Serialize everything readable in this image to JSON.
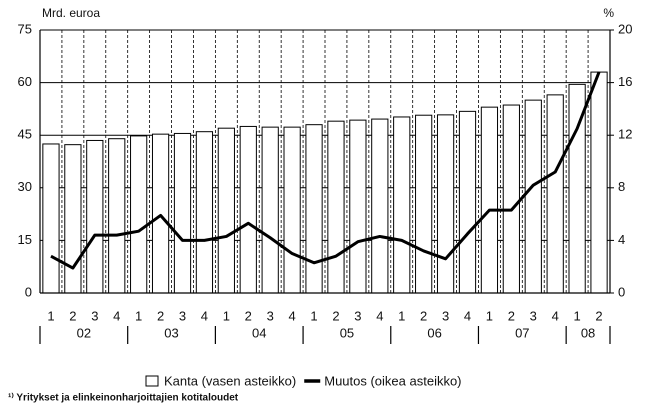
{
  "chart_data": {
    "type": "bar",
    "y_label": "Mrd. euroa",
    "y2_label": "%",
    "categories": [
      "1",
      "2",
      "3",
      "4",
      "1",
      "2",
      "3",
      "4",
      "1",
      "2",
      "3",
      "4",
      "1",
      "2",
      "3",
      "4",
      "1",
      "2",
      "3",
      "4",
      "1",
      "2",
      "3",
      "4",
      "1",
      "2"
    ],
    "years": [
      "02",
      "03",
      "04",
      "05",
      "06",
      "07",
      "08"
    ],
    "series": [
      {
        "name": "Kanta (vasen asteikko)",
        "type": "bar",
        "color": "#ffffff",
        "values": [
          42.5,
          42.3,
          43.5,
          44,
          44.8,
          45.3,
          45.5,
          46,
          47,
          47.5,
          47.3,
          47.3,
          48,
          49,
          49.3,
          49.6,
          50.2,
          50.7,
          50.8,
          51.8,
          53,
          53.6,
          55,
          56.5,
          59.5,
          63
        ]
      },
      {
        "name": "Muutos (oikea asteikko)",
        "type": "line",
        "axis": "y2",
        "color": "#000000",
        "values": [
          2.8,
          1.9,
          4.4,
          4.4,
          4.7,
          5.9,
          4.0,
          4.0,
          4.3,
          5.3,
          4.2,
          3.0,
          2.3,
          2.8,
          3.9,
          4.3,
          4.0,
          3.2,
          2.6,
          4.5,
          6.3,
          6.3,
          8.2,
          9.2,
          12.5,
          16.8
        ]
      }
    ],
    "ylim": [
      0,
      75
    ],
    "yticks": [
      0,
      15,
      30,
      45,
      60,
      75
    ],
    "y2lim": [
      0,
      20
    ],
    "y2ticks": [
      0,
      4,
      8,
      12,
      16,
      20
    ],
    "grid": true,
    "footnote": "¹⁾ Yritykset ja elinkeinonharjoittajien kotitaloudet"
  }
}
